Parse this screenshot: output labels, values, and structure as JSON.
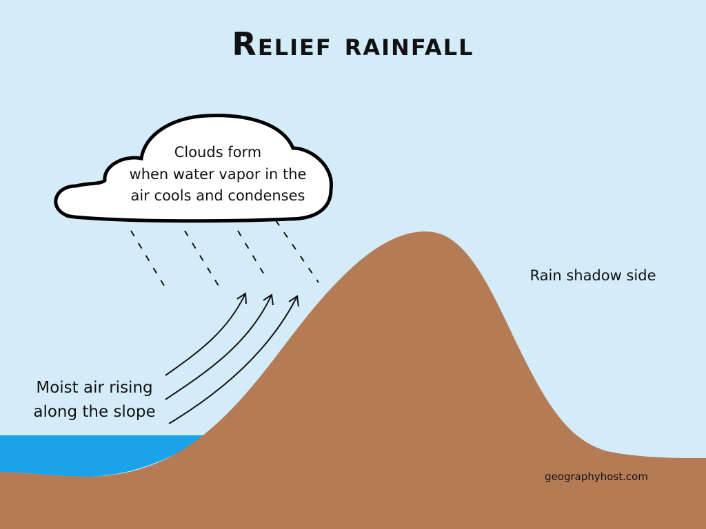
{
  "title": "Relief rainfall",
  "cloud": {
    "lines": [
      "Clouds form",
      "when water vapor in the",
      "air cools and condenses"
    ]
  },
  "labels": {
    "moist_air": [
      "Moist air rising",
      "along the slope"
    ],
    "rain_shadow": "Rain shadow side"
  },
  "credit": "geographyhost.com"
}
